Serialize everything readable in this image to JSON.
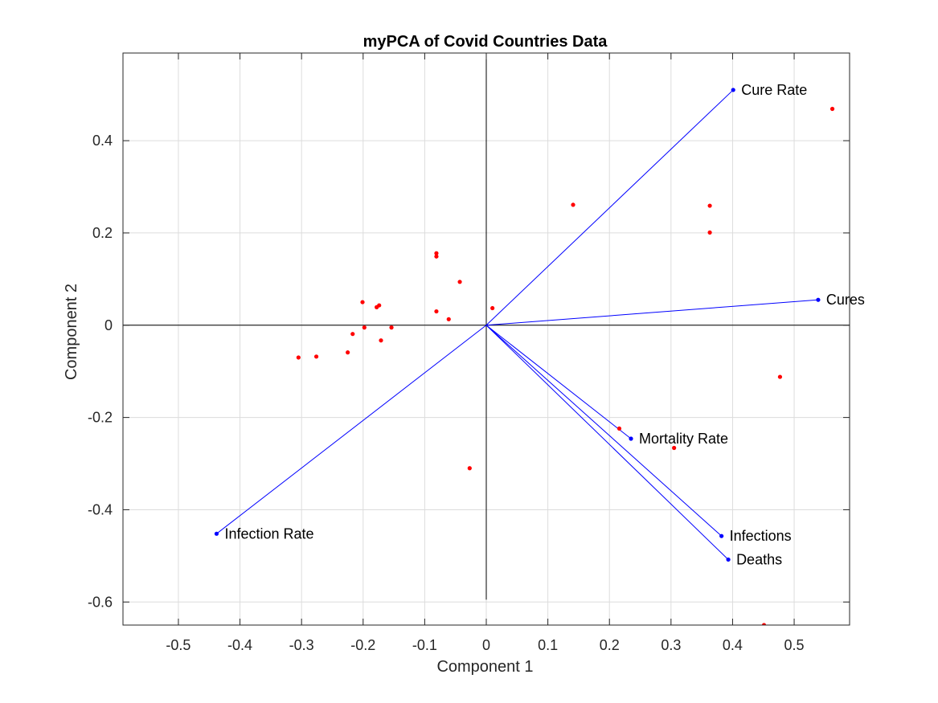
{
  "chart_data": {
    "type": "scatter",
    "title": "myPCA of Covid Countries Data",
    "xlabel": "Component 1",
    "ylabel": "Component 2",
    "xlim": [
      -0.59,
      0.59
    ],
    "ylim": [
      -0.65,
      0.59
    ],
    "grid": true,
    "xticks": [
      -0.5,
      -0.4,
      -0.3,
      -0.2,
      -0.1,
      0,
      0.1,
      0.2,
      0.3,
      0.4,
      0.5
    ],
    "xtick_labels": [
      "-0.5",
      "-0.4",
      "-0.3",
      "-0.2",
      "-0.1",
      "0",
      "0.1",
      "0.2",
      "0.3",
      "0.4",
      "0.5"
    ],
    "yticks": [
      -0.6,
      -0.4,
      -0.2,
      0,
      0.2,
      0.4
    ],
    "ytick_labels": [
      "-0.6",
      "-0.4",
      "-0.2",
      "0",
      "0.2",
      "0.4"
    ],
    "axis_lines": {
      "horizontal_y": 0,
      "vertical_x": 0,
      "vertical_y_range": [
        -0.595,
        0.59
      ]
    },
    "vectors": [
      {
        "name": "Cure Rate",
        "x": 0.401,
        "y": 0.51
      },
      {
        "name": "Cures",
        "x": 0.539,
        "y": 0.055
      },
      {
        "name": "Mortality Rate",
        "x": 0.235,
        "y": -0.246
      },
      {
        "name": "Infections",
        "x": 0.382,
        "y": -0.457
      },
      {
        "name": "Deaths",
        "x": 0.393,
        "y": -0.508
      },
      {
        "name": "Infection Rate",
        "x": -0.438,
        "y": -0.452
      }
    ],
    "points": [
      {
        "x": 0.562,
        "y": 0.469
      },
      {
        "x": 0.141,
        "y": 0.261
      },
      {
        "x": 0.363,
        "y": 0.259
      },
      {
        "x": 0.363,
        "y": 0.201
      },
      {
        "x": -0.081,
        "y": 0.156
      },
      {
        "x": -0.081,
        "y": 0.149
      },
      {
        "x": -0.043,
        "y": 0.094
      },
      {
        "x": -0.201,
        "y": 0.05
      },
      {
        "x": -0.174,
        "y": 0.043
      },
      {
        "x": -0.178,
        "y": 0.039
      },
      {
        "x": 0.01,
        "y": 0.037
      },
      {
        "x": -0.081,
        "y": 0.03
      },
      {
        "x": -0.061,
        "y": 0.013
      },
      {
        "x": -0.198,
        "y": -0.005
      },
      {
        "x": -0.154,
        "y": -0.005
      },
      {
        "x": -0.217,
        "y": -0.019
      },
      {
        "x": -0.171,
        "y": -0.033
      },
      {
        "x": -0.225,
        "y": -0.059
      },
      {
        "x": -0.305,
        "y": -0.07
      },
      {
        "x": -0.276,
        "y": -0.068
      },
      {
        "x": 0.477,
        "y": -0.112
      },
      {
        "x": 0.216,
        "y": -0.224
      },
      {
        "x": 0.305,
        "y": -0.266
      },
      {
        "x": -0.027,
        "y": -0.31
      },
      {
        "x": 0.451,
        "y": -0.65
      }
    ],
    "colors": {
      "vectors": "#0000ff",
      "points": "#ff0000",
      "axes": "#262626",
      "grid": "#dcdcdc",
      "zero_lines": "#000000"
    }
  }
}
